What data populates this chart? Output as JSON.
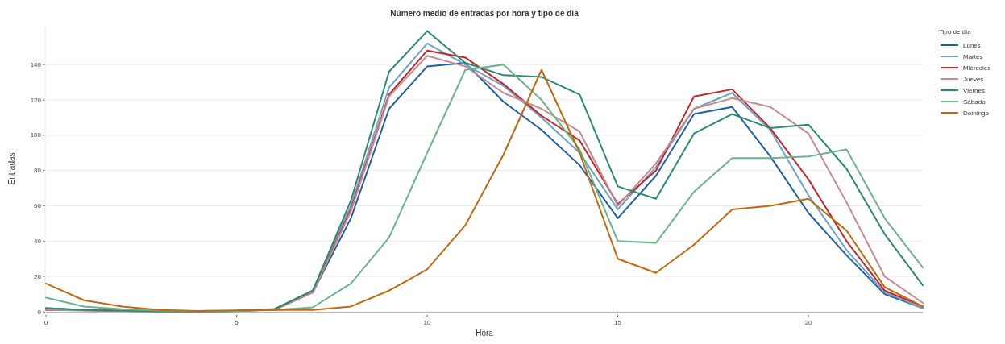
{
  "chart_data": {
    "type": "line",
    "title": "Número medio de entradas por hora y tipo de día",
    "xlabel": "Hora",
    "ylabel": "Entradas",
    "legend_title": "Tipo de día",
    "legend": "right",
    "grid": "y",
    "x": [
      0,
      1,
      2,
      3,
      4,
      5,
      6,
      7,
      8,
      9,
      10,
      11,
      12,
      13,
      14,
      15,
      16,
      17,
      18,
      19,
      20,
      21,
      22,
      23
    ],
    "xlim": [
      0,
      23
    ],
    "xticks": [
      0,
      5,
      10,
      15,
      20
    ],
    "ylim": [
      0,
      162
    ],
    "yticks": [
      0,
      20,
      40,
      60,
      80,
      100,
      120,
      140
    ],
    "series": [
      {
        "name": "Lunes",
        "color": "#1f5fa6",
        "values": [
          2,
          1,
          0.5,
          0.3,
          0.2,
          0.5,
          1.5,
          11,
          53,
          115,
          139,
          141,
          119,
          103,
          83,
          53,
          77,
          112,
          116,
          88,
          56,
          32,
          10,
          2
        ]
      },
      {
        "name": "Martes",
        "color": "#6fa0c8",
        "values": [
          1.5,
          1,
          0.5,
          0.3,
          0.2,
          0.5,
          1.5,
          12,
          60,
          127,
          152,
          140,
          128,
          110,
          90,
          58,
          82,
          115,
          124,
          103,
          66,
          35,
          11,
          2
        ]
      },
      {
        "name": "Miércoles",
        "color": "#c0282d",
        "values": [
          1,
          0.8,
          0.5,
          0.3,
          0.2,
          0.5,
          1.2,
          11,
          58,
          123,
          148,
          144,
          129,
          111,
          97,
          61,
          80,
          122,
          126,
          104,
          75,
          40,
          12,
          3
        ]
      },
      {
        "name": "Jueves",
        "color": "#c48a92",
        "values": [
          1,
          0.8,
          0.5,
          0.3,
          0.2,
          0.5,
          1.2,
          11,
          57,
          122,
          145,
          139,
          124,
          115,
          102,
          60,
          84,
          115,
          121,
          116,
          101,
          62,
          20,
          5
        ]
      },
      {
        "name": "Viernes",
        "color": "#2a8a6e",
        "values": [
          2,
          1,
          0.7,
          0.3,
          0.2,
          0.6,
          1.6,
          12,
          63,
          136,
          159,
          141,
          134,
          133,
          123,
          71,
          64,
          101,
          112,
          104,
          106,
          81,
          44,
          15
        ]
      },
      {
        "name": "Sábado",
        "color": "#6db38a",
        "values": [
          8,
          3,
          1.5,
          0.7,
          0.3,
          0.5,
          1,
          2.5,
          16,
          42,
          90,
          137,
          140,
          120,
          92,
          40,
          39,
          68,
          87,
          87,
          88,
          92,
          53,
          25
        ]
      },
      {
        "name": "Domingo",
        "color": "#c06a10",
        "values": [
          16,
          6.5,
          3,
          1,
          0.5,
          0.8,
          1,
          1,
          3,
          12,
          24,
          49,
          89,
          137,
          90,
          30,
          22,
          38,
          58,
          60,
          64,
          46,
          14,
          3
        ]
      }
    ]
  }
}
